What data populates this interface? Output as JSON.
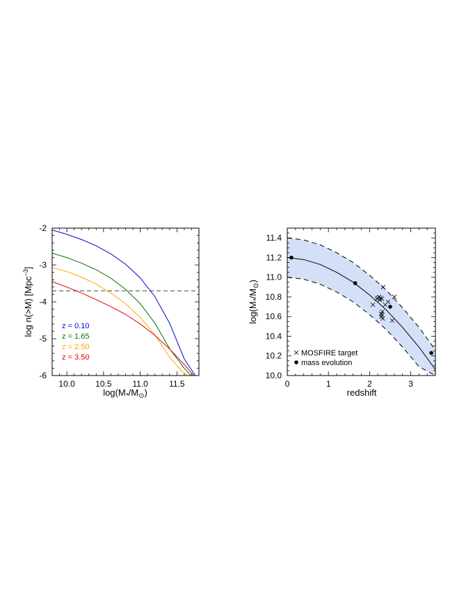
{
  "chart_data": [
    {
      "type": "line",
      "xlabel": "log(M*/M⊙)",
      "ylabel": "log n(>M) [Mpc⁻³]",
      "xlim": [
        9.8,
        11.8
      ],
      "ylim": [
        -6,
        -2
      ],
      "xticks": [
        "10.0",
        "10.5",
        "11.0",
        "11.5"
      ],
      "yticks": [
        "-6",
        "-5",
        "-4",
        "-3",
        "-2"
      ],
      "hline": -3.7,
      "series": [
        {
          "name": "z = 0.10",
          "color": "#0000dd",
          "x": [
            9.8,
            10.0,
            10.2,
            10.4,
            10.6,
            10.8,
            11.0,
            11.2,
            11.4,
            11.6,
            11.75
          ],
          "y": [
            -2.05,
            -2.17,
            -2.31,
            -2.48,
            -2.7,
            -2.98,
            -3.35,
            -3.86,
            -4.58,
            -5.55,
            -6.0
          ]
        },
        {
          "name": "z = 1.65",
          "color": "#007700",
          "x": [
            9.8,
            10.0,
            10.2,
            10.4,
            10.6,
            10.8,
            11.0,
            11.2,
            11.4,
            11.6,
            11.69
          ],
          "y": [
            -2.68,
            -2.8,
            -2.95,
            -3.13,
            -3.36,
            -3.66,
            -4.05,
            -4.58,
            -5.27,
            -5.8,
            -6.0
          ]
        },
        {
          "name": "z = 2.50",
          "color": "#ffa500",
          "x": [
            9.8,
            10.0,
            10.2,
            10.4,
            10.6,
            10.8,
            11.0,
            11.2,
            11.4,
            11.55,
            11.64
          ],
          "y": [
            -3.07,
            -3.18,
            -3.33,
            -3.52,
            -3.76,
            -4.05,
            -4.42,
            -4.9,
            -5.5,
            -5.85,
            -6.0
          ]
        },
        {
          "name": "z = 3.50",
          "color": "#dd0000",
          "x": [
            9.8,
            10.0,
            10.2,
            10.4,
            10.6,
            10.8,
            11.0,
            11.2,
            11.4,
            11.6,
            11.73
          ],
          "y": [
            -3.45,
            -3.6,
            -3.76,
            -3.94,
            -4.13,
            -4.34,
            -4.6,
            -4.91,
            -5.28,
            -5.7,
            -6.0
          ]
        }
      ]
    },
    {
      "type": "scatter",
      "xlabel": "redshift",
      "ylabel": "log(M*/M⊙)",
      "xlim": [
        0,
        3.6
      ],
      "ylim": [
        10.0,
        11.5
      ],
      "xticks": [
        "0",
        "1",
        "2",
        "3"
      ],
      "yticks": [
        "10.0",
        "10.2",
        "10.4",
        "10.6",
        "10.8",
        "11.0",
        "11.2",
        "11.4"
      ],
      "band_color": "#d4e0f7",
      "curve": {
        "x": [
          0.0,
          0.4,
          0.8,
          1.2,
          1.6,
          2.0,
          2.4,
          2.8,
          3.2,
          3.6
        ],
        "y": [
          11.2,
          11.18,
          11.13,
          11.05,
          10.95,
          10.82,
          10.67,
          10.49,
          10.29,
          10.06
        ]
      },
      "band_upper": [
        11.4,
        11.38,
        11.33,
        11.25,
        11.15,
        11.02,
        10.87,
        10.69,
        10.49,
        10.26
      ],
      "band_lower": [
        11.0,
        10.98,
        10.93,
        10.85,
        10.75,
        10.62,
        10.47,
        10.29,
        10.09,
        9.86
      ],
      "series": [
        {
          "name": "MOSFIRE target",
          "marker": "x",
          "x": [
            2.08,
            2.18,
            2.2,
            2.23,
            2.25,
            2.27,
            2.28,
            2.29,
            2.3,
            2.31,
            2.32,
            2.33,
            2.38,
            2.45,
            2.55,
            2.6,
            2.3
          ],
          "y": [
            10.72,
            10.78,
            10.79,
            10.8,
            10.77,
            10.79,
            10.63,
            10.6,
            10.62,
            10.65,
            10.58,
            10.9,
            10.72,
            10.75,
            10.56,
            10.8,
            10.78
          ]
        },
        {
          "name": "mass evolution",
          "marker": "dot",
          "x": [
            0.1,
            1.65,
            2.5,
            3.5
          ],
          "y": [
            11.2,
            10.94,
            10.7,
            10.23
          ]
        }
      ]
    }
  ]
}
